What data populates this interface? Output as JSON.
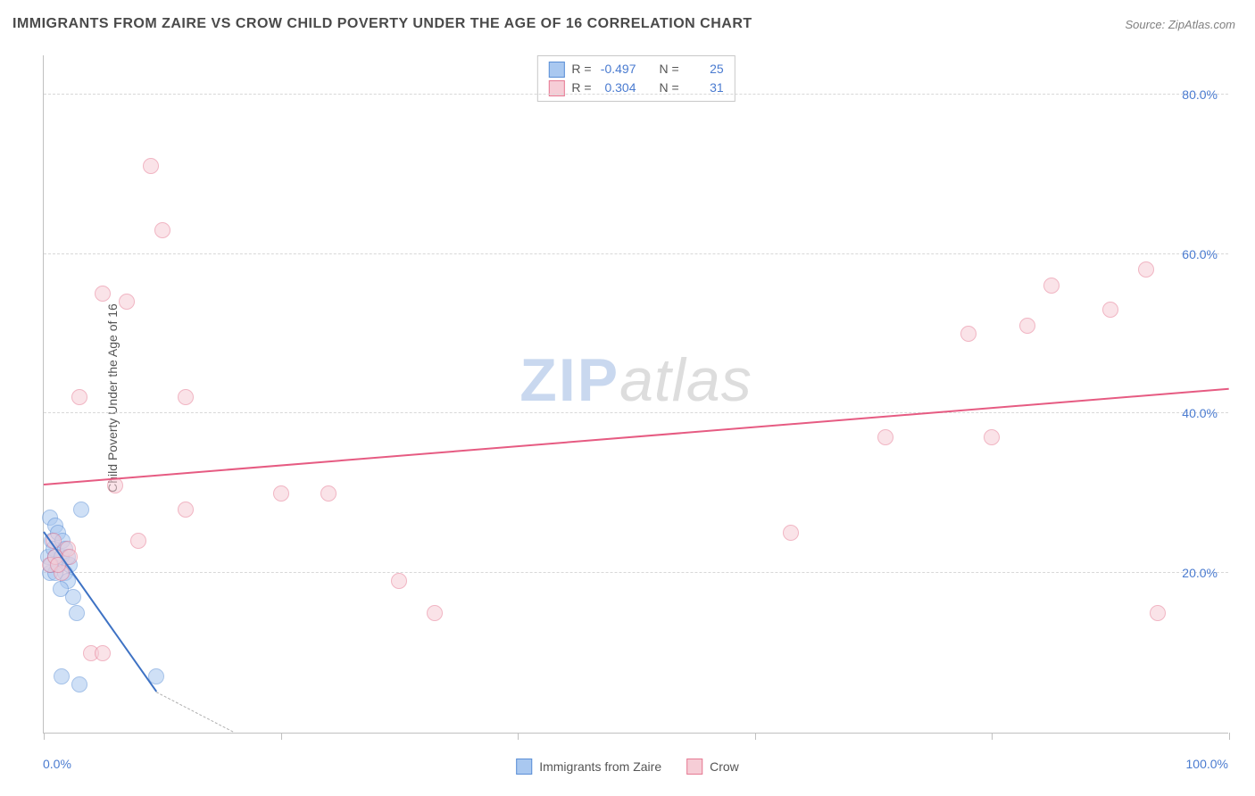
{
  "title": "IMMIGRANTS FROM ZAIRE VS CROW CHILD POVERTY UNDER THE AGE OF 16 CORRELATION CHART",
  "source_label": "Source: ZipAtlas.com",
  "ylabel": "Child Poverty Under the Age of 16",
  "chart": {
    "type": "scatter",
    "xlim": [
      0,
      100
    ],
    "ylim": [
      0,
      85
    ],
    "ytick_values": [
      20,
      40,
      60,
      80
    ],
    "ytick_labels": [
      "20.0%",
      "40.0%",
      "60.0%",
      "80.0%"
    ],
    "xtick_values": [
      0,
      20,
      40,
      60,
      80,
      100
    ],
    "xtick_minor_labels": {
      "0": "0.0%",
      "100": "100.0%"
    },
    "background_color": "#ffffff",
    "grid_color": "#d8d8d8",
    "axis_color": "#c0c0c0",
    "tick_label_color": "#4a7bd0",
    "ylabel_color": "#555555",
    "ylabel_fontsize": 14,
    "title_fontsize": 16,
    "title_color": "#4a4a4a",
    "point_radius": 9,
    "point_opacity": 0.55,
    "series": [
      {
        "name": "Immigrants from Zaire",
        "fill_color": "#a9c8f0",
        "stroke_color": "#5b8fd6",
        "r_value": "-0.497",
        "n_value": "25",
        "trend": {
          "x1": 0,
          "y1": 25,
          "x2": 9.5,
          "y2": 5,
          "color": "#3e72c4",
          "width": 2,
          "dash_extend_x": 16
        },
        "points": [
          [
            0.5,
            27
          ],
          [
            0.4,
            22
          ],
          [
            0.5,
            20
          ],
          [
            0.7,
            24
          ],
          [
            0.8,
            23
          ],
          [
            1.0,
            26
          ],
          [
            1.2,
            25
          ],
          [
            1.0,
            22
          ],
          [
            1.3,
            21
          ],
          [
            1.5,
            22
          ],
          [
            1.6,
            24
          ],
          [
            1.8,
            20
          ],
          [
            2.0,
            19
          ],
          [
            2.2,
            21
          ],
          [
            1.4,
            18
          ],
          [
            1.8,
            23
          ],
          [
            2.5,
            17
          ],
          [
            2.8,
            15
          ],
          [
            3.2,
            28
          ],
          [
            1.0,
            20
          ],
          [
            2.0,
            22
          ],
          [
            1.5,
            7
          ],
          [
            3.0,
            6
          ],
          [
            9.5,
            7
          ],
          [
            0.6,
            21
          ]
        ]
      },
      {
        "name": "Crow",
        "fill_color": "#f6cdd6",
        "stroke_color": "#e67a93",
        "r_value": "0.304",
        "n_value": "31",
        "trend": {
          "x1": 0,
          "y1": 31,
          "x2": 100,
          "y2": 43,
          "color": "#e65b82",
          "width": 2
        },
        "points": [
          [
            3,
            42
          ],
          [
            5,
            55
          ],
          [
            7,
            54
          ],
          [
            9,
            71
          ],
          [
            10,
            63
          ],
          [
            12,
            42
          ],
          [
            6,
            31
          ],
          [
            12,
            28
          ],
          [
            8,
            24
          ],
          [
            4,
            10
          ],
          [
            5,
            10
          ],
          [
            20,
            30
          ],
          [
            24,
            30
          ],
          [
            30,
            19
          ],
          [
            33,
            15
          ],
          [
            63,
            25
          ],
          [
            71,
            37
          ],
          [
            78,
            50
          ],
          [
            83,
            51
          ],
          [
            85,
            56
          ],
          [
            90,
            53
          ],
          [
            93,
            58
          ],
          [
            94,
            15
          ],
          [
            80,
            37
          ],
          [
            0.5,
            21
          ],
          [
            1.0,
            22
          ],
          [
            1.5,
            20
          ],
          [
            2.0,
            23
          ],
          [
            2.2,
            22
          ],
          [
            0.8,
            24
          ],
          [
            1.2,
            21
          ]
        ]
      }
    ]
  },
  "stat_box": {
    "r_label": "R =",
    "n_label": "N ="
  },
  "legend_bottom": [
    {
      "swatch_fill": "#a9c8f0",
      "swatch_stroke": "#5b8fd6",
      "label": "Immigrants from Zaire"
    },
    {
      "swatch_fill": "#f6cdd6",
      "swatch_stroke": "#e67a93",
      "label": "Crow"
    }
  ],
  "watermark": {
    "part1": "ZIP",
    "part2": "atlas"
  }
}
